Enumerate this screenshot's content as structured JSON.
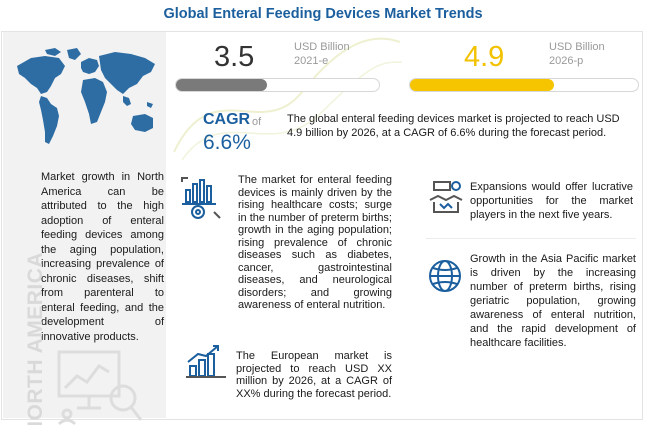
{
  "title": "Global Enteral Feeding Devices Market Trends",
  "left_panel": {
    "region_label": "NORTH AMERICA",
    "text": "Market growth in North America can be attributed to the high adoption of enteral feeding devices among the aging population, increasing prevalence of chronic diseases, shift from parenteral to enteral feeding, and the development of innovative products."
  },
  "stats": {
    "value_2021": "3.5",
    "unit_2021_line1": "USD Billion",
    "unit_2021_line2": "2021-e",
    "bar_2021_fraction": 0.45,
    "value_2026": "4.9",
    "unit_2026_line1": "USD Billion",
    "unit_2026_line2": "2026-p",
    "bar_2026_fraction": 0.63,
    "cagr_label": "CAGR",
    "cagr_of": "of",
    "cagr_value": "6.6%",
    "cagr_text": "The global enteral feeding devices market is projected to reach USD 4.9 billion by 2026, at a CAGR of 6.6% during the forecast period."
  },
  "blocks": {
    "drivers": "The market for enteral feeding devices is mainly driven by the rising healthcare costs; surge in the number of preterm births; growth in the aging population; rising prevalence of chronic diseases such as diabetes, cancer, gastrointestinal diseases, and neurological disorders; and growing awareness of enteral nutrition.",
    "europe": "The European market is projected to reach USD XX million by 2026, at a CAGR of XX% during the forecast period.",
    "expansions": "Expansions would offer lucrative opportunities for the market players in the next five years.",
    "asia_pacific": "Growth in the Asia Pacific market is driven by the increasing number of preterm births, rising geriatric population, growing awareness of enteral nutrition, and the rapid development of healthcare facilities."
  },
  "colors": {
    "title": "#1b5f9e",
    "accent_yellow": "#f6c500",
    "bar_gray": "#7a7a7a",
    "icon_blue": "#1b5f9e",
    "icon_gray": "#555555"
  },
  "icons": {
    "map": "world-map-icon",
    "left": "analytics-presentation-icon",
    "drivers": "chart-gear-icon",
    "europe": "growth-bars-icon",
    "expansions": "handshake-icon",
    "asia_pacific": "globe-icon"
  }
}
